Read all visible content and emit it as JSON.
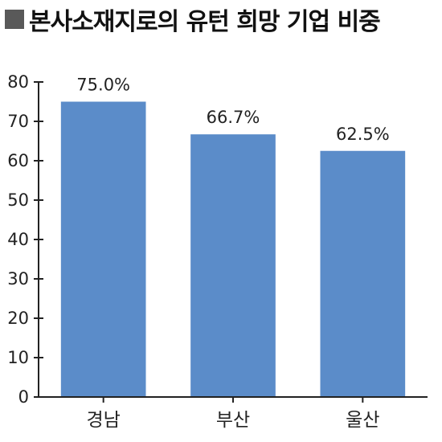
{
  "title": "본사소재지로의 유턴 희망 기업 비중",
  "colors": {
    "bar": "#5b8cc9",
    "title_marker": "#595959",
    "axis": "#222222"
  },
  "chart_data": {
    "type": "bar",
    "title": "본사소재지로의 유턴 희망 기업 비중",
    "categories": [
      "경남",
      "부산",
      "울산"
    ],
    "values": [
      75.0,
      66.7,
      62.5
    ],
    "data_labels": [
      "75.0%",
      "66.7%",
      "62.5%"
    ],
    "ylim": [
      0,
      80
    ],
    "yticks": [
      0,
      10,
      20,
      30,
      40,
      50,
      60,
      70,
      80
    ],
    "xlabel": "",
    "ylabel": "",
    "grid": false,
    "legend": "none"
  }
}
